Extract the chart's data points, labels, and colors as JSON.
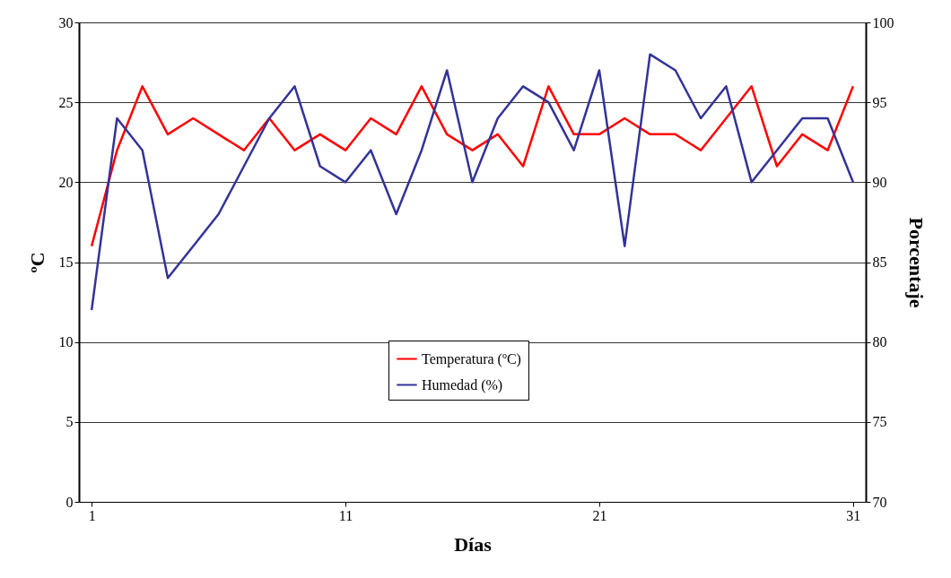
{
  "chart_data": {
    "type": "line",
    "xlabel": "Días",
    "ylabel": "ºC",
    "y2label": "Porcentaje",
    "x": [
      1,
      2,
      3,
      4,
      5,
      6,
      7,
      8,
      9,
      10,
      11,
      12,
      13,
      14,
      15,
      16,
      17,
      18,
      19,
      20,
      21,
      22,
      23,
      24,
      25,
      26,
      27,
      28,
      29,
      30,
      31
    ],
    "series": [
      {
        "name": "Temperatura (ºC)",
        "color": "#ff0000",
        "values": [
          16,
          22,
          26,
          23,
          24,
          23,
          22,
          24,
          22,
          23,
          22,
          24,
          23,
          26,
          23,
          22,
          23,
          21,
          26,
          23,
          23,
          24,
          23,
          23,
          22,
          24,
          26,
          21,
          23,
          22,
          26
        ]
      },
      {
        "name": "Humedad (%)",
        "color": "#333399",
        "axis": "y2",
        "values": [
          82,
          94,
          92,
          84,
          86,
          88,
          91,
          94,
          96,
          91,
          90,
          92,
          88,
          92,
          97,
          90,
          94,
          96,
          95,
          92,
          97,
          86,
          98,
          97,
          94,
          96,
          90,
          92,
          94,
          94,
          90
        ]
      }
    ],
    "xlim": [
      0.5,
      31.5
    ],
    "xticks": [
      1,
      11,
      21,
      31
    ],
    "ylim": [
      0,
      30
    ],
    "yticks": [
      0,
      5,
      10,
      15,
      20,
      25,
      30
    ],
    "y2lim": [
      70,
      100
    ],
    "y2ticks": [
      70,
      75,
      80,
      85,
      90,
      95,
      100
    ],
    "grid": "y",
    "legend": "center",
    "line_style": "solid",
    "marker": "none"
  }
}
